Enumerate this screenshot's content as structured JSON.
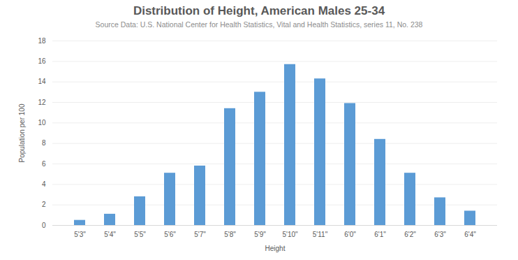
{
  "chart_data": {
    "type": "bar",
    "title": "Distribution of Height, American Males 25-34",
    "subtitle": "Source Data: U.S. National Center for Health Statistics, Vital and Health Statistics, series 11, No. 238",
    "x_label": "Height",
    "y_label": "Population per 100",
    "categories": [
      "5'3\"",
      "5'4\"",
      "5'5\"",
      "5'6\"",
      "5'7\"",
      "5'8\"",
      "5'9\"",
      "5'10\"",
      "5'11\"",
      "6'0\"",
      "6'1\"",
      "6'2\"",
      "6'3\"",
      "6'4\""
    ],
    "values": [
      0.5,
      1.1,
      2.8,
      5.1,
      5.8,
      11.4,
      13.0,
      15.7,
      14.3,
      11.9,
      8.4,
      5.1,
      2.7,
      1.4
    ],
    "color": "#5b9bd5",
    "ylim": [
      0,
      18
    ],
    "yticks": [
      0,
      2,
      4,
      6,
      8,
      10,
      12,
      14,
      16,
      18
    ],
    "grid": true
  }
}
